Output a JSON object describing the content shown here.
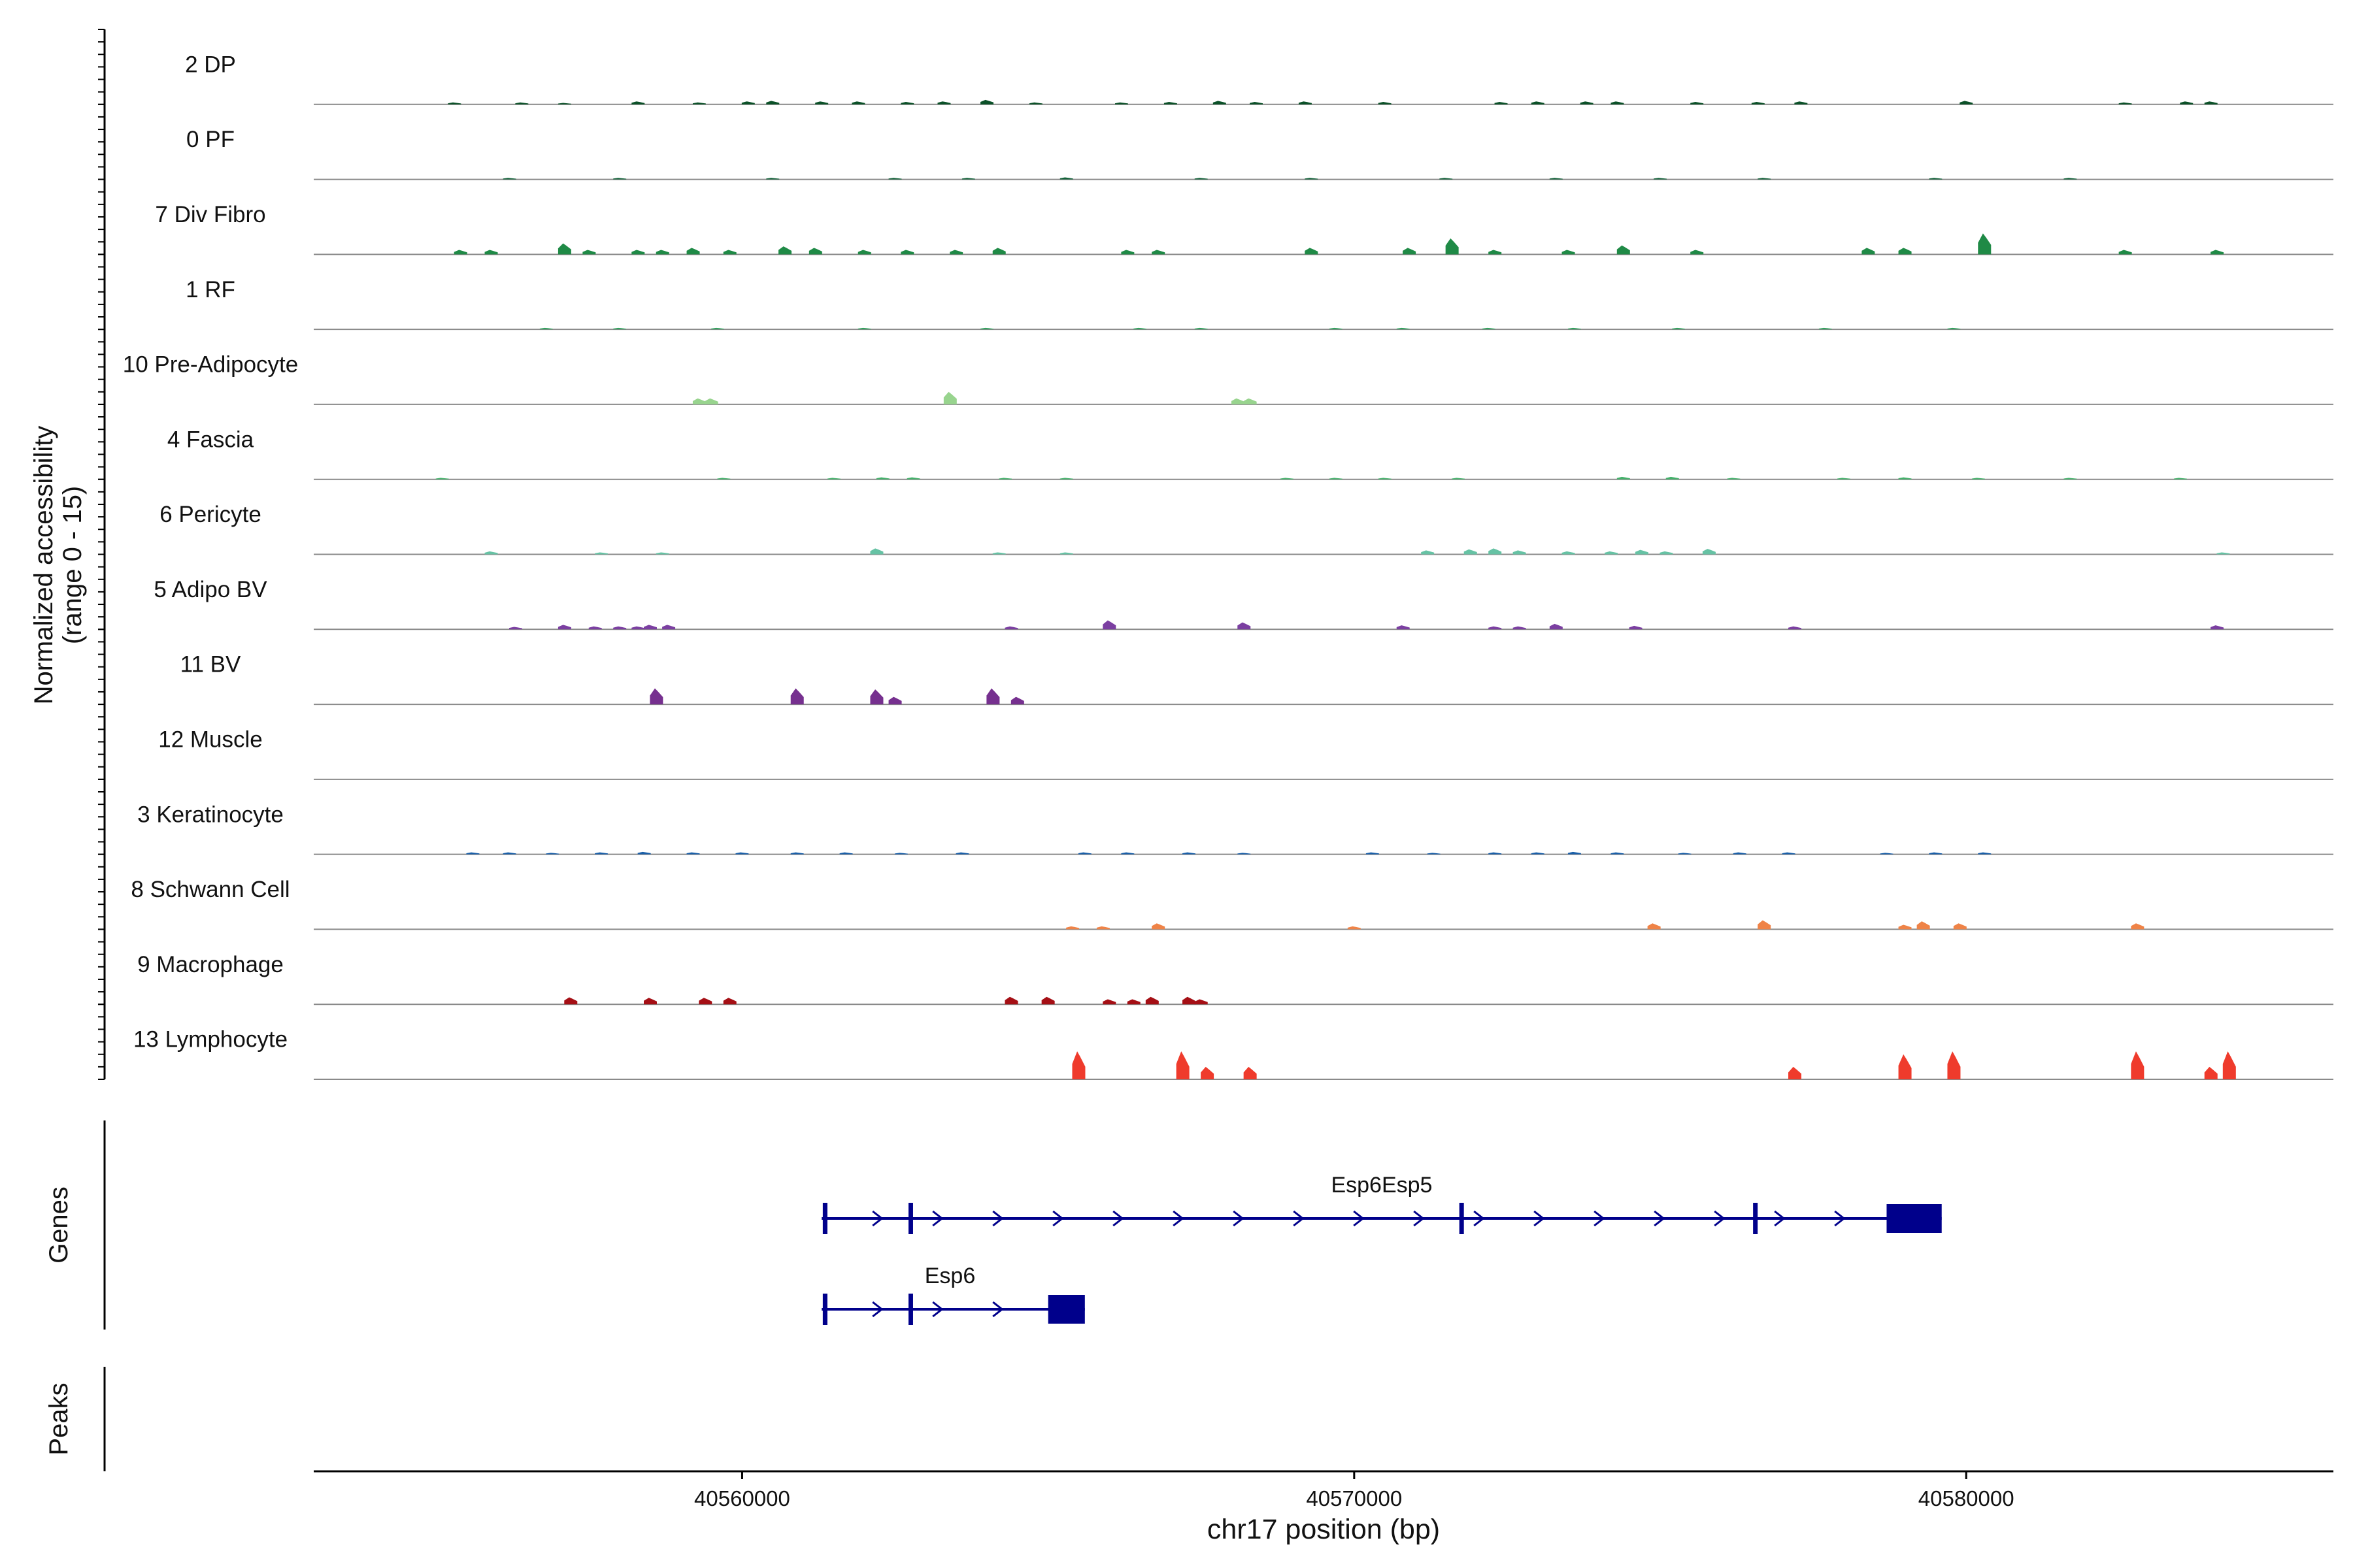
{
  "chart_data": {
    "type": "area",
    "title": "",
    "xlabel": "chr17 position (bp)",
    "ylabel": "Normalized accessibility\n(range 0 - 15)",
    "ylim": [
      0,
      15
    ],
    "xlim": [
      40553000,
      40586000
    ],
    "x_ticks": [
      40560000,
      40570000,
      40580000
    ],
    "x_tick_labels": [
      "40560000",
      "40570000",
      "40580000"
    ],
    "side_labels": {
      "genes": "Genes",
      "peaks": "Peaks"
    },
    "series": [
      {
        "name": "2 DP",
        "color": "#0b5128",
        "peaks": [
          [
            40555300,
            0.4
          ],
          [
            40556400,
            0.4
          ],
          [
            40557100,
            0.3
          ],
          [
            40558300,
            0.6
          ],
          [
            40559300,
            0.4
          ],
          [
            40560100,
            0.6
          ],
          [
            40560500,
            0.7
          ],
          [
            40561300,
            0.6
          ],
          [
            40561900,
            0.6
          ],
          [
            40562700,
            0.5
          ],
          [
            40563300,
            0.6
          ],
          [
            40564000,
            0.9
          ],
          [
            40564800,
            0.4
          ],
          [
            40566200,
            0.4
          ],
          [
            40567000,
            0.5
          ],
          [
            40567800,
            0.7
          ],
          [
            40568400,
            0.5
          ],
          [
            40569200,
            0.6
          ],
          [
            40570500,
            0.5
          ],
          [
            40572400,
            0.5
          ],
          [
            40573000,
            0.6
          ],
          [
            40573800,
            0.6
          ],
          [
            40574300,
            0.6
          ],
          [
            40575600,
            0.5
          ],
          [
            40576600,
            0.5
          ],
          [
            40577300,
            0.6
          ],
          [
            40580000,
            0.7
          ],
          [
            40582600,
            0.4
          ],
          [
            40583600,
            0.6
          ],
          [
            40584000,
            0.6
          ]
        ]
      },
      {
        "name": "0 PF",
        "color": "#14623a",
        "peaks": [
          [
            40556200,
            0.3
          ],
          [
            40558000,
            0.3
          ],
          [
            40560500,
            0.3
          ],
          [
            40562500,
            0.3
          ],
          [
            40563700,
            0.3
          ],
          [
            40565300,
            0.4
          ],
          [
            40567500,
            0.3
          ],
          [
            40569300,
            0.3
          ],
          [
            40571500,
            0.3
          ],
          [
            40573300,
            0.3
          ],
          [
            40575000,
            0.3
          ],
          [
            40576700,
            0.3
          ],
          [
            40579500,
            0.3
          ],
          [
            40581700,
            0.3
          ]
        ]
      },
      {
        "name": "7 Div Fibro",
        "color": "#1f8a46",
        "peaks": [
          [
            40555400,
            0.9
          ],
          [
            40555900,
            0.9
          ],
          [
            40557100,
            2.2
          ],
          [
            40557500,
            0.9
          ],
          [
            40558300,
            0.9
          ],
          [
            40558700,
            0.9
          ],
          [
            40559200,
            1.3
          ],
          [
            40559800,
            0.9
          ],
          [
            40560700,
            1.6
          ],
          [
            40561200,
            1.3
          ],
          [
            40562000,
            0.9
          ],
          [
            40562700,
            0.9
          ],
          [
            40563500,
            0.9
          ],
          [
            40564200,
            1.3
          ],
          [
            40566300,
            0.9
          ],
          [
            40566800,
            0.9
          ],
          [
            40569300,
            1.3
          ],
          [
            40570900,
            1.3
          ],
          [
            40571600,
            3.2
          ],
          [
            40572300,
            0.9
          ],
          [
            40573500,
            0.9
          ],
          [
            40574400,
            1.8
          ],
          [
            40575600,
            0.9
          ],
          [
            40578400,
            1.3
          ],
          [
            40579000,
            1.3
          ],
          [
            40580300,
            4.2
          ],
          [
            40582600,
            0.9
          ],
          [
            40584100,
            0.9
          ]
        ]
      },
      {
        "name": "1 RF",
        "color": "#33a05e",
        "peaks": [
          [
            40556800,
            0.3
          ],
          [
            40558000,
            0.3
          ],
          [
            40559600,
            0.3
          ],
          [
            40562000,
            0.3
          ],
          [
            40564000,
            0.3
          ],
          [
            40566500,
            0.3
          ],
          [
            40567500,
            0.3
          ],
          [
            40569700,
            0.3
          ],
          [
            40570800,
            0.3
          ],
          [
            40572200,
            0.3
          ],
          [
            40573600,
            0.3
          ],
          [
            40575300,
            0.3
          ],
          [
            40577700,
            0.3
          ],
          [
            40579800,
            0.3
          ]
        ]
      },
      {
        "name": "10 Pre-Adipocyte",
        "color": "#98d48e",
        "peaks": [
          [
            40559300,
            1.2
          ],
          [
            40559500,
            1.2
          ],
          [
            40563400,
            2.5
          ],
          [
            40568100,
            1.2
          ],
          [
            40568300,
            1.2
          ]
        ]
      },
      {
        "name": "4 Fascia",
        "color": "#44b06a",
        "peaks": [
          [
            40555100,
            0.3
          ],
          [
            40559700,
            0.3
          ],
          [
            40561500,
            0.3
          ],
          [
            40562300,
            0.4
          ],
          [
            40562800,
            0.4
          ],
          [
            40564300,
            0.3
          ],
          [
            40565300,
            0.3
          ],
          [
            40568900,
            0.3
          ],
          [
            40569700,
            0.3
          ],
          [
            40570500,
            0.3
          ],
          [
            40571700,
            0.3
          ],
          [
            40574400,
            0.5
          ],
          [
            40575200,
            0.5
          ],
          [
            40576200,
            0.3
          ],
          [
            40578000,
            0.3
          ],
          [
            40579000,
            0.4
          ],
          [
            40580200,
            0.3
          ],
          [
            40581700,
            0.3
          ],
          [
            40583500,
            0.3
          ]
        ]
      },
      {
        "name": "6 Pericyte",
        "color": "#66c2a4",
        "peaks": [
          [
            40555900,
            0.6
          ],
          [
            40557700,
            0.4
          ],
          [
            40558700,
            0.4
          ],
          [
            40562200,
            1.2
          ],
          [
            40564200,
            0.4
          ],
          [
            40565300,
            0.4
          ],
          [
            40571200,
            0.8
          ],
          [
            40571900,
            1.0
          ],
          [
            40572300,
            1.2
          ],
          [
            40572700,
            0.8
          ],
          [
            40573500,
            0.6
          ],
          [
            40574200,
            0.6
          ],
          [
            40574700,
            0.9
          ],
          [
            40575100,
            0.6
          ],
          [
            40575800,
            1.1
          ],
          [
            40584200,
            0.4
          ]
        ]
      },
      {
        "name": "5 Adipo BV",
        "color": "#7b3fa1",
        "peaks": [
          [
            40556300,
            0.5
          ],
          [
            40557100,
            0.9
          ],
          [
            40557600,
            0.6
          ],
          [
            40558000,
            0.6
          ],
          [
            40558300,
            0.6
          ],
          [
            40558500,
            0.9
          ],
          [
            40558800,
            0.9
          ],
          [
            40564400,
            0.6
          ],
          [
            40566000,
            1.8
          ],
          [
            40568200,
            1.4
          ],
          [
            40570800,
            0.8
          ],
          [
            40572300,
            0.6
          ],
          [
            40572700,
            0.6
          ],
          [
            40573300,
            1.1
          ],
          [
            40574600,
            0.7
          ],
          [
            40577200,
            0.6
          ],
          [
            40584100,
            0.8
          ]
        ]
      },
      {
        "name": "11 BV",
        "color": "#76308f",
        "peaks": [
          [
            40558600,
            3.2
          ],
          [
            40560900,
            3.2
          ],
          [
            40562200,
            3.0
          ],
          [
            40562500,
            1.5
          ],
          [
            40564100,
            3.2
          ],
          [
            40564500,
            1.5
          ]
        ]
      },
      {
        "name": "12 Muscle",
        "color": "#3a2a7a",
        "peaks": []
      },
      {
        "name": "3 Keratinocyte",
        "color": "#1a5fa8",
        "peaks": [
          [
            40555600,
            0.4
          ],
          [
            40556200,
            0.4
          ],
          [
            40556900,
            0.3
          ],
          [
            40557700,
            0.4
          ],
          [
            40558400,
            0.5
          ],
          [
            40559200,
            0.4
          ],
          [
            40560000,
            0.4
          ],
          [
            40560900,
            0.4
          ],
          [
            40561700,
            0.4
          ],
          [
            40562600,
            0.3
          ],
          [
            40563600,
            0.4
          ],
          [
            40565600,
            0.4
          ],
          [
            40566300,
            0.4
          ],
          [
            40567300,
            0.4
          ],
          [
            40568200,
            0.3
          ],
          [
            40570300,
            0.4
          ],
          [
            40571300,
            0.3
          ],
          [
            40572300,
            0.4
          ],
          [
            40573000,
            0.4
          ],
          [
            40573600,
            0.5
          ],
          [
            40574300,
            0.4
          ],
          [
            40575400,
            0.3
          ],
          [
            40576300,
            0.4
          ],
          [
            40577100,
            0.4
          ],
          [
            40578700,
            0.3
          ],
          [
            40579500,
            0.4
          ],
          [
            40580300,
            0.4
          ]
        ]
      },
      {
        "name": "8 Schwann Cell",
        "color": "#ef8347",
        "peaks": [
          [
            40565400,
            0.6
          ],
          [
            40565900,
            0.6
          ],
          [
            40566800,
            1.2
          ],
          [
            40570000,
            0.6
          ],
          [
            40574900,
            1.2
          ],
          [
            40576700,
            1.8
          ],
          [
            40579000,
            0.9
          ],
          [
            40579300,
            1.6
          ],
          [
            40579900,
            1.2
          ],
          [
            40582800,
            1.2
          ]
        ]
      },
      {
        "name": "9 Macrophage",
        "color": "#a50f15",
        "peaks": [
          [
            40557200,
            1.4
          ],
          [
            40558500,
            1.3
          ],
          [
            40559400,
            1.3
          ],
          [
            40559800,
            1.3
          ],
          [
            40564400,
            1.5
          ],
          [
            40565000,
            1.5
          ],
          [
            40566000,
            1.0
          ],
          [
            40566400,
            1.0
          ],
          [
            40566700,
            1.5
          ],
          [
            40567300,
            1.5
          ],
          [
            40567500,
            1.0
          ]
        ]
      },
      {
        "name": "13 Lymphocyte",
        "color": "#ef3b2c",
        "peaks": [
          [
            40565500,
            5.6
          ],
          [
            40567200,
            5.6
          ],
          [
            40567600,
            2.5
          ],
          [
            40568300,
            2.5
          ],
          [
            40577200,
            2.5
          ],
          [
            40579000,
            5.0
          ],
          [
            40579800,
            5.6
          ],
          [
            40582800,
            5.6
          ],
          [
            40584000,
            2.5
          ],
          [
            40584300,
            5.6
          ]
        ]
      }
    ],
    "genes": [
      {
        "name": "Esp6Esp5",
        "color": "#00008b",
        "start": 40561300,
        "end": 40579600,
        "strand": "+",
        "exons": [
          [
            40561300,
            40561400
          ],
          [
            40562700,
            40562800
          ],
          [
            40571700,
            40571800
          ],
          [
            40576500,
            40576600
          ],
          [
            40578700,
            40579600
          ]
        ]
      },
      {
        "name": "Esp6",
        "color": "#00008b",
        "start": 40561300,
        "end": 40565600,
        "strand": "+",
        "exons": [
          [
            40561300,
            40561400
          ],
          [
            40562700,
            40562800
          ],
          [
            40565000,
            40565600
          ]
        ]
      }
    ],
    "peaks_track": []
  }
}
